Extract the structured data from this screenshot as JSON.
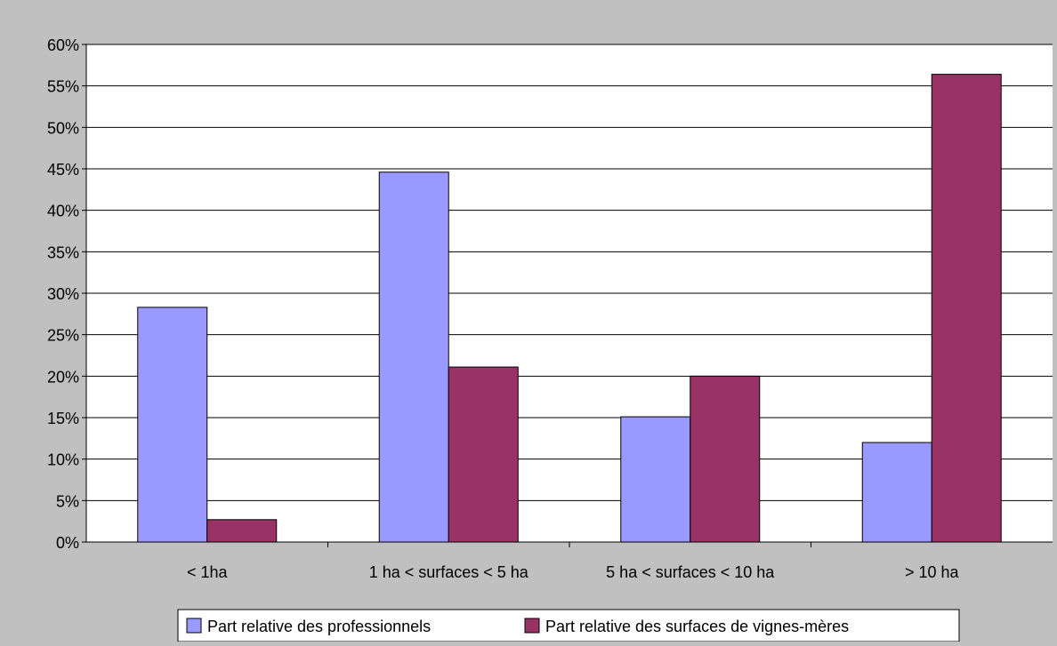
{
  "chart_data": {
    "type": "bar",
    "title": "",
    "xlabel": "",
    "ylabel": "",
    "categories": [
      "< 1ha",
      "1 ha < surfaces < 5 ha",
      "5 ha < surfaces < 10 ha",
      "> 10 ha"
    ],
    "series": [
      {
        "name": "Part relative des professionnels",
        "values": [
          28.3,
          44.6,
          15.1,
          12.0
        ],
        "color": "#9999ff"
      },
      {
        "name": "Part relative des surfaces de vignes-mères",
        "values": [
          2.7,
          21.1,
          20.0,
          56.4
        ],
        "color": "#993366"
      }
    ],
    "y_ticks": [
      "0%",
      "5%",
      "10%",
      "15%",
      "20%",
      "25%",
      "30%",
      "35%",
      "40%",
      "45%",
      "50%",
      "55%",
      "60%"
    ],
    "ylim": [
      0,
      60
    ],
    "grid": true,
    "legend_position": "bottom",
    "colors": {
      "chart_background": "#c0c0c0",
      "plot_background": "#ffffff",
      "gridline": "#000000"
    }
  }
}
